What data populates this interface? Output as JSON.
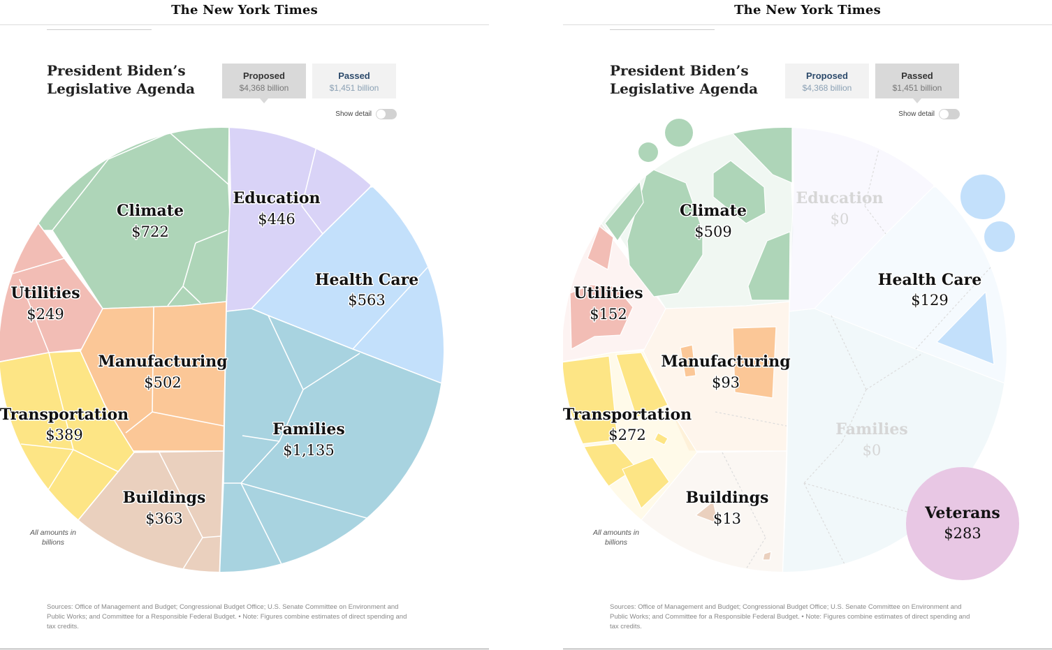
{
  "masthead": "The New York Times",
  "headline": "President Biden’s\nLegislative Agenda",
  "tabs": [
    {
      "label": "Proposed",
      "sub": "$4,368 billion"
    },
    {
      "label": "Passed",
      "sub": "$1,451 billion"
    }
  ],
  "toggle_label": "Show detail",
  "note_amounts": "All amounts in billions",
  "footnote": "Sources: Office of Management and Budget; Congressional Budget Office; U.S. Senate Committee on Environment and Public Works; and Committee for a Responsible Federal Budget. • Note: Figures combine estimates of direct spending and tax credits.",
  "colors": {
    "Climate": "#aed5b8",
    "Education": "#d9d3f7",
    "Health Care": "#c3e0fb",
    "Families": "#a8d3e0",
    "Utilities": "#f2bdb5",
    "Manufacturing": "#fbc797",
    "Transportation": "#fde585",
    "Buildings": "#ead0be",
    "Veterans": "#e8c7e4"
  },
  "chart_data": [
    {
      "type": "voronoi-treemap",
      "view": "Proposed",
      "categories": [
        "Climate",
        "Education",
        "Health Care",
        "Families",
        "Utilities",
        "Manufacturing",
        "Transportation",
        "Buildings"
      ],
      "values": [
        722,
        446,
        563,
        1135,
        249,
        502,
        389,
        363
      ],
      "labels": [
        "$722",
        "$446",
        "$563",
        "$1,135",
        "$249",
        "$502",
        "$389",
        "$363"
      ],
      "units": "billions of dollars"
    },
    {
      "type": "voronoi-treemap",
      "view": "Passed",
      "categories": [
        "Climate",
        "Education",
        "Health Care",
        "Families",
        "Utilities",
        "Manufacturing",
        "Transportation",
        "Buildings",
        "Veterans"
      ],
      "values": [
        509,
        0,
        129,
        0,
        152,
        93,
        272,
        13,
        283
      ],
      "labels": [
        "$509",
        "$0",
        "$129",
        "$0",
        "$152",
        "$93",
        "$272",
        "$13",
        "$283"
      ],
      "units": "billions of dollars"
    }
  ]
}
